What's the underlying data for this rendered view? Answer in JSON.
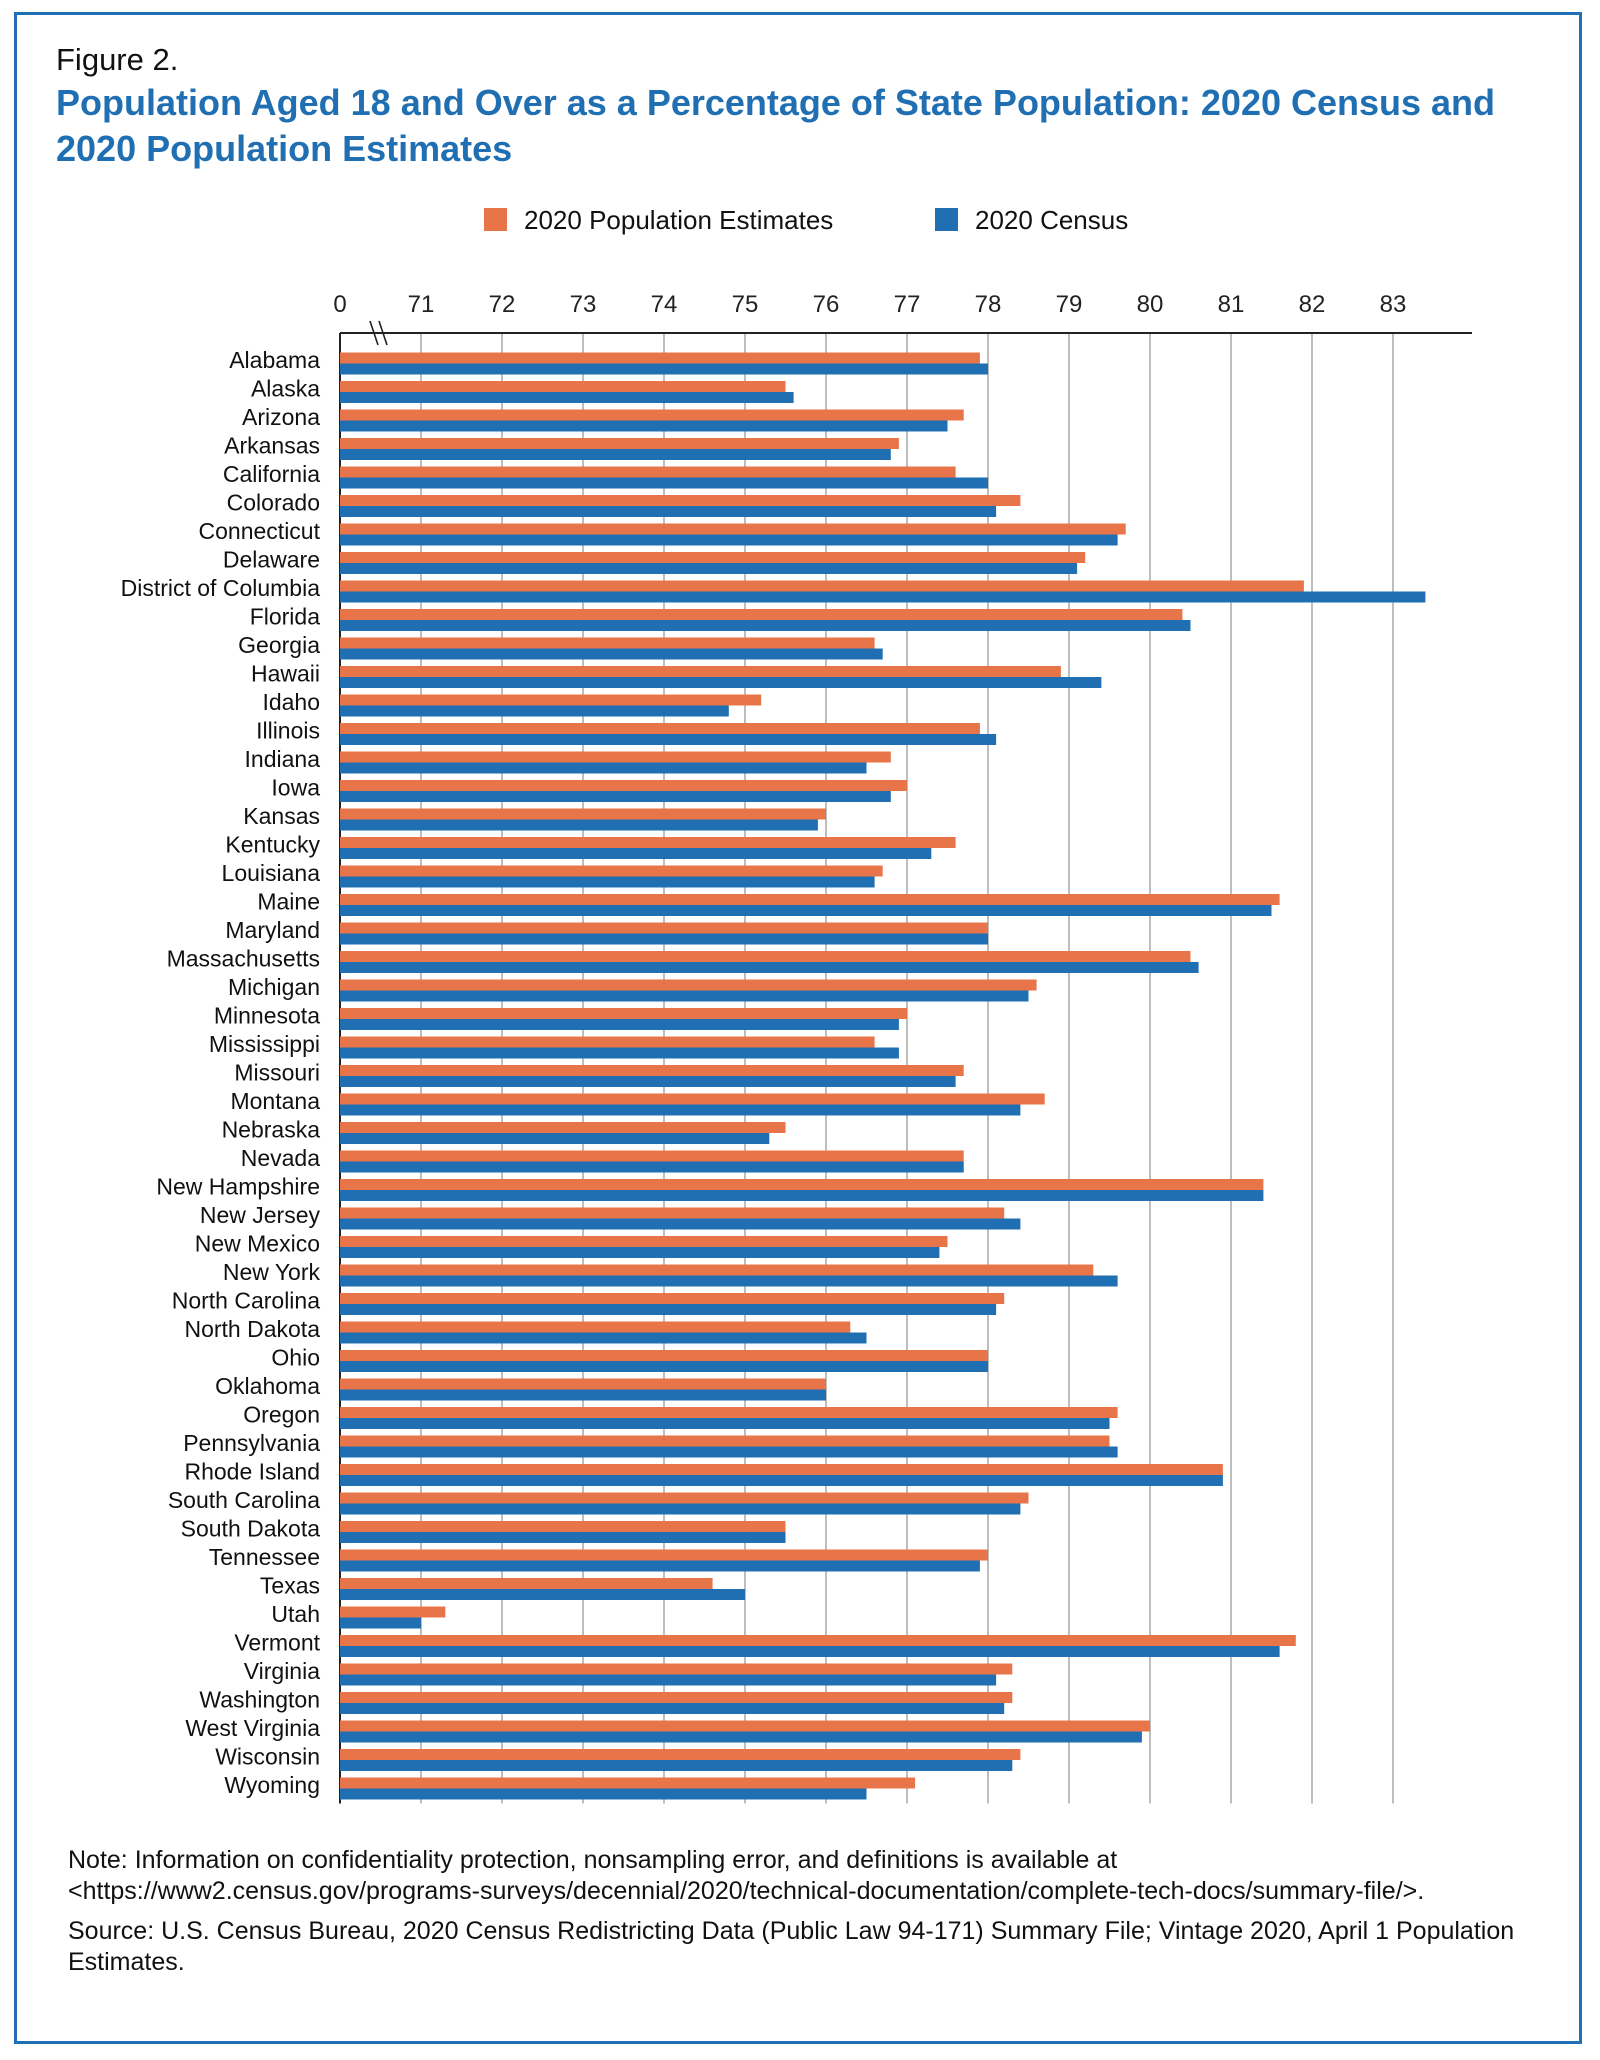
{
  "figure_label": "Figure 2.",
  "notes": {
    "note_text": "Note: Information on confidentiality protection, nonsampling error, and definitions is available at",
    "note_url": "<https://www2.census.gov/programs-surveys/decennial/2020/technical-documentation/complete-tech-docs/summary-file/>.",
    "source": "Source: U.S. Census Bureau, 2020 Census Redistricting Data (Public Law 94-171) Summary File; Vintage 2020, April 1 Population Estimates."
  },
  "colors": {
    "estimates": "#e8744a",
    "census": "#1f6fb2",
    "grid": "#9a9a9a",
    "title": "#1f6fb2"
  },
  "chart_data": {
    "type": "bar",
    "orientation": "horizontal",
    "title": "Population Aged 18 and Over as a Percentage of State Population: 2020 Census and 2020 Population Estimates",
    "xlabel": "",
    "ylabel": "",
    "xlim": [
      70,
      84
    ],
    "axis_break": true,
    "x_ticks": [
      "0",
      "71",
      "72",
      "73",
      "74",
      "75",
      "76",
      "77",
      "78",
      "79",
      "80",
      "81",
      "82",
      "83"
    ],
    "grid": true,
    "legend_position": "top-center",
    "categories": [
      "Alabama",
      "Alaska",
      "Arizona",
      "Arkansas",
      "California",
      "Colorado",
      "Connecticut",
      "Delaware",
      "District of Columbia",
      "Florida",
      "Georgia",
      "Hawaii",
      "Idaho",
      "Illinois",
      "Indiana",
      "Iowa",
      "Kansas",
      "Kentucky",
      "Louisiana",
      "Maine",
      "Maryland",
      "Massachusetts",
      "Michigan",
      "Minnesota",
      "Mississippi",
      "Missouri",
      "Montana",
      "Nebraska",
      "Nevada",
      "New Hampshire",
      "New Jersey",
      "New Mexico",
      "New York",
      "North Carolina",
      "North Dakota",
      "Ohio",
      "Oklahoma",
      "Oregon",
      "Pennsylvania",
      "Rhode Island",
      "South Carolina",
      "South Dakota",
      "Tennessee",
      "Texas",
      "Utah",
      "Vermont",
      "Virginia",
      "Washington",
      "West Virginia",
      "Wisconsin",
      "Wyoming"
    ],
    "series": [
      {
        "name": "2020 Population Estimates",
        "values": [
          77.9,
          75.5,
          77.7,
          76.9,
          77.6,
          78.4,
          79.7,
          79.2,
          81.9,
          80.4,
          76.6,
          78.9,
          75.2,
          77.9,
          76.8,
          77.0,
          76.0,
          77.6,
          76.7,
          81.6,
          78.0,
          80.5,
          78.6,
          77.0,
          76.6,
          77.7,
          78.7,
          75.5,
          77.7,
          81.4,
          78.2,
          77.5,
          79.3,
          78.2,
          76.3,
          78.0,
          76.0,
          79.6,
          79.5,
          80.9,
          78.5,
          75.5,
          78.0,
          74.6,
          71.3,
          81.8,
          78.3,
          78.3,
          80.0,
          78.4,
          77.1
        ]
      },
      {
        "name": "2020 Census",
        "values": [
          78.0,
          75.6,
          77.5,
          76.8,
          78.0,
          78.1,
          79.6,
          79.1,
          83.4,
          80.5,
          76.7,
          79.4,
          74.8,
          78.1,
          76.5,
          76.8,
          75.9,
          77.3,
          76.6,
          81.5,
          78.0,
          80.6,
          78.5,
          76.9,
          76.9,
          77.6,
          78.4,
          75.3,
          77.7,
          81.4,
          78.4,
          77.4,
          79.6,
          78.1,
          76.5,
          78.0,
          76.0,
          79.5,
          79.6,
          80.9,
          78.4,
          75.5,
          77.9,
          75.0,
          71.0,
          81.6,
          78.1,
          78.2,
          79.9,
          78.3,
          76.5
        ]
      }
    ]
  }
}
